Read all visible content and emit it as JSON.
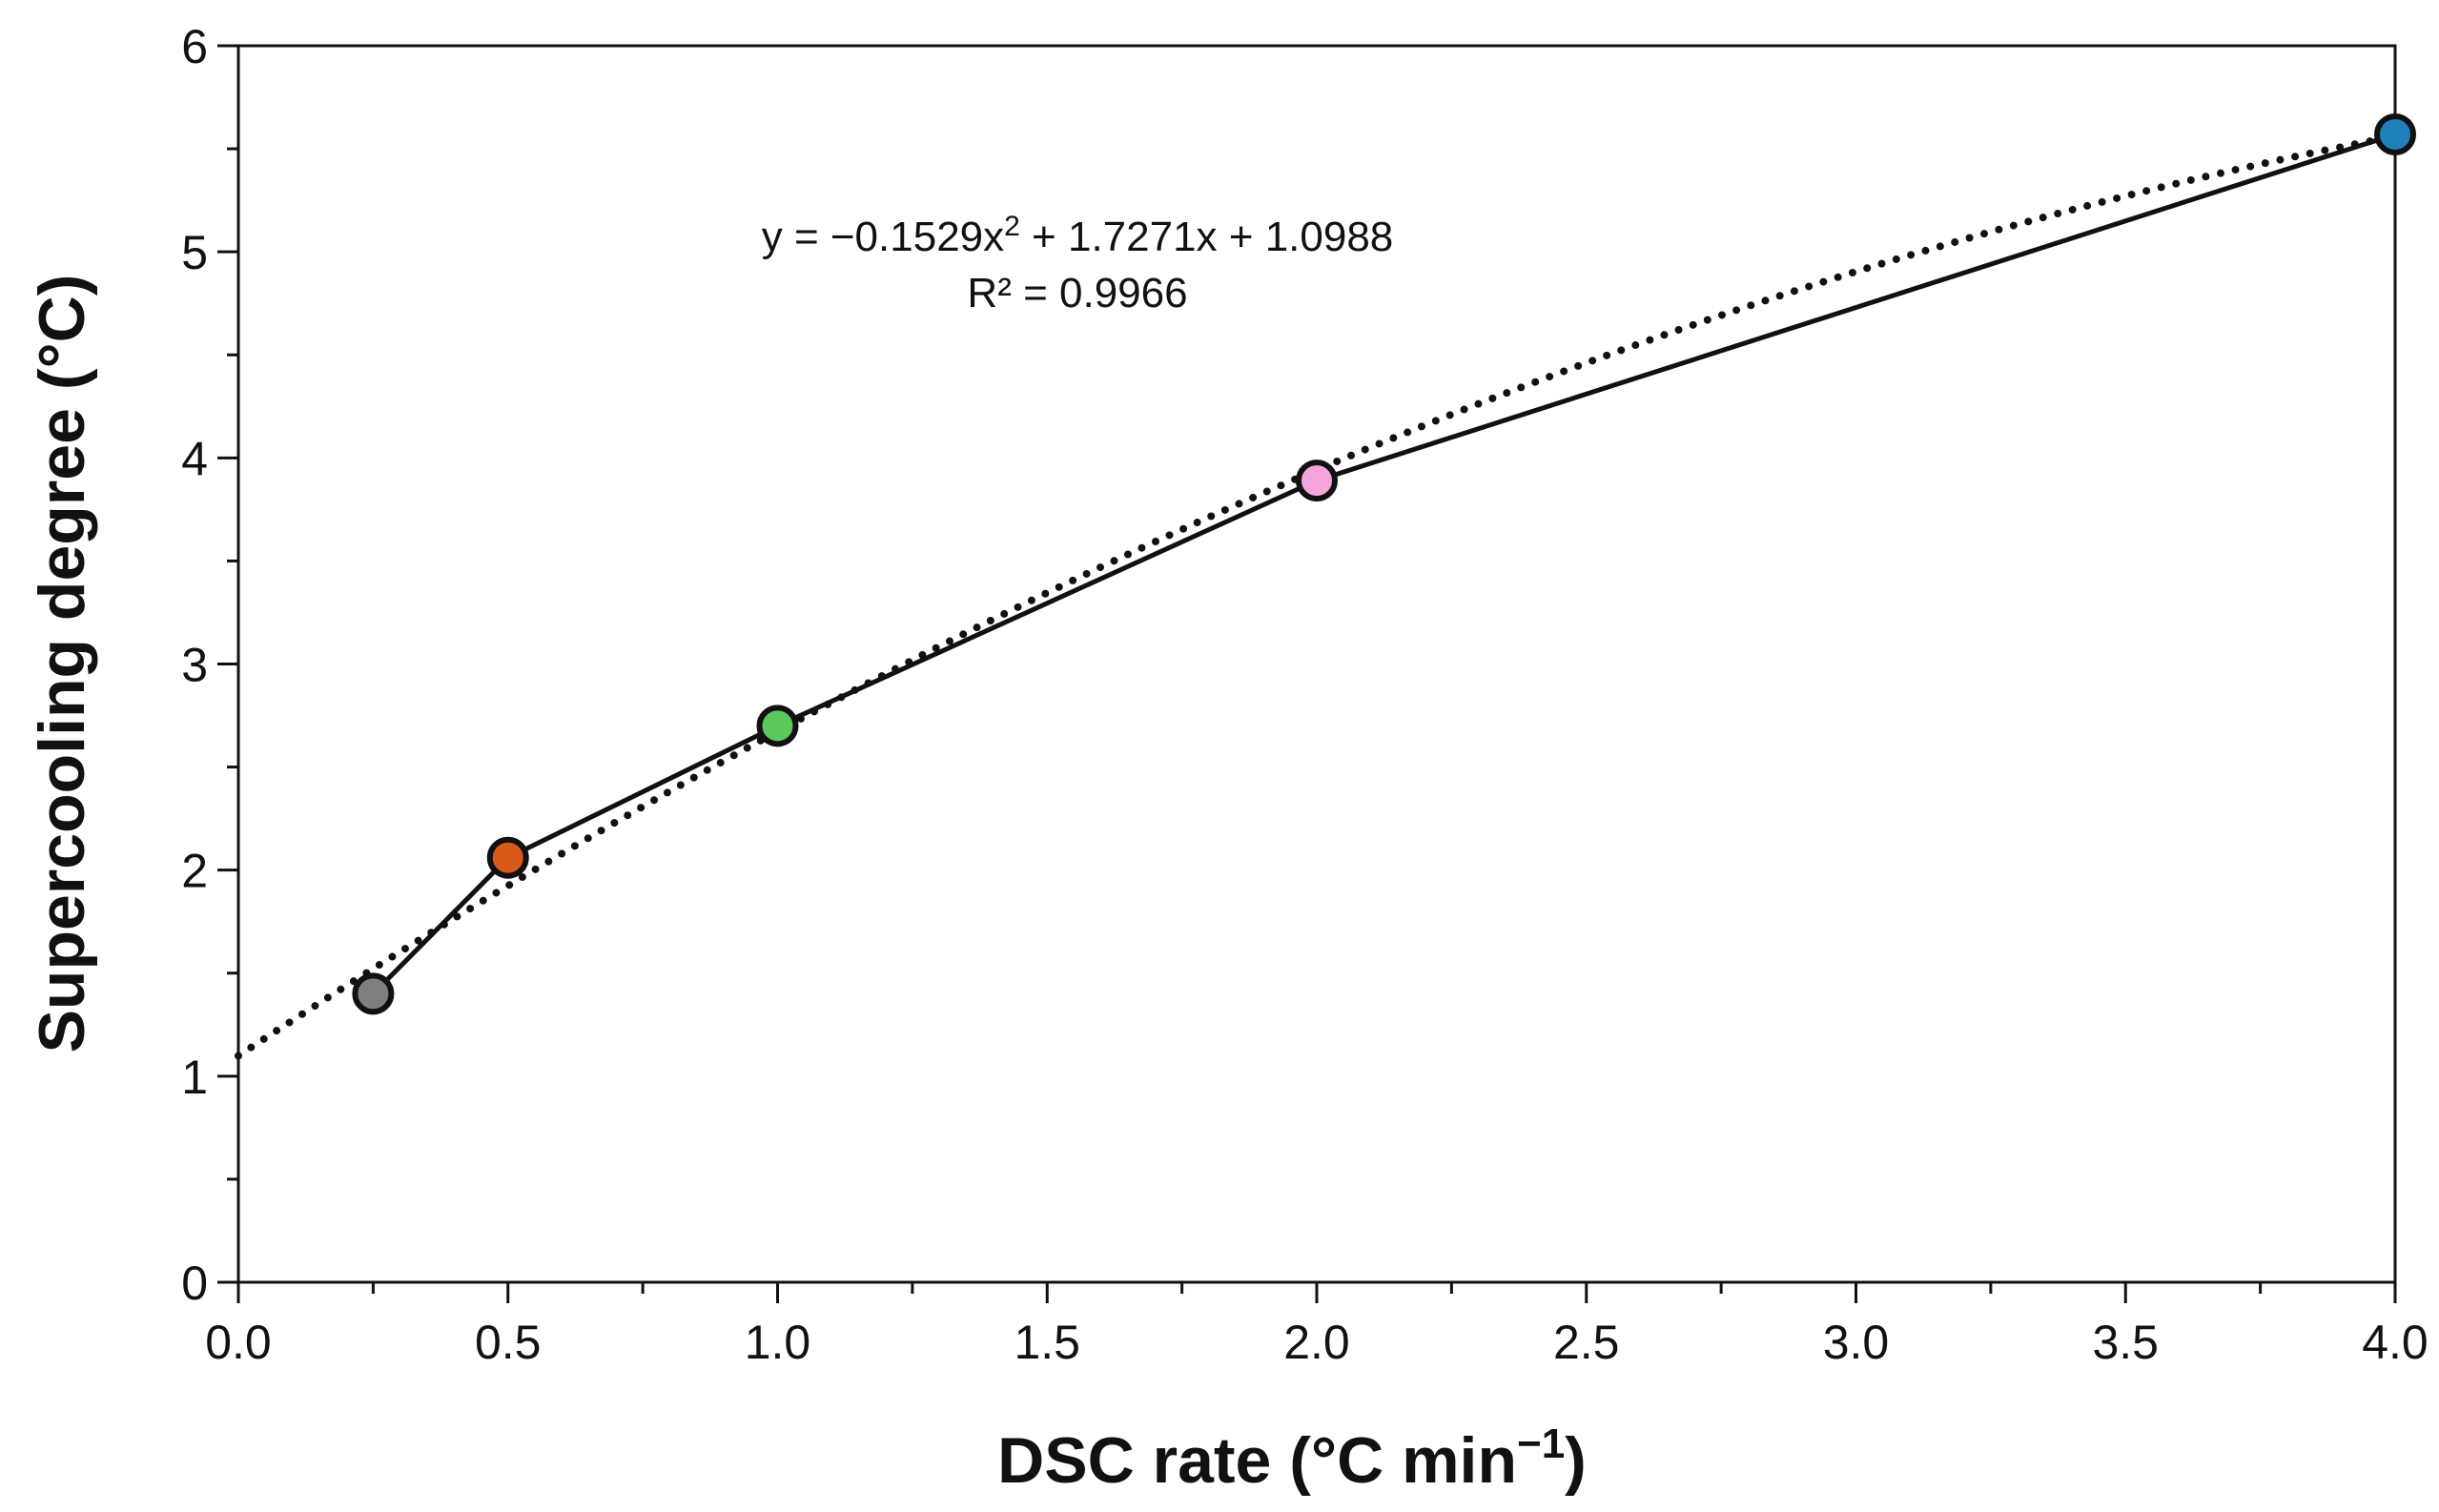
{
  "chart_data": {
    "type": "line",
    "title": "",
    "xlabel": "DSC rate (°C min",
    "xlabel_sup": "−1",
    "xlabel_end": ")",
    "ylabel": "Supercooling degree (°C)",
    "xlim": [
      0.0,
      4.0
    ],
    "ylim": [
      0,
      6
    ],
    "xticks": [
      0.0,
      0.5,
      1.0,
      1.5,
      2.0,
      2.5,
      3.0,
      3.5,
      4.0
    ],
    "xtick_labels": [
      "0.0",
      "0.5",
      "1.0",
      "1.5",
      "2.0",
      "2.5",
      "3.0",
      "3.5",
      "4.0"
    ],
    "yticks": [
      0,
      1,
      2,
      3,
      4,
      5,
      6
    ],
    "ytick_labels": [
      "0",
      "1",
      "2",
      "3",
      "4",
      "5",
      "6"
    ],
    "grid": false,
    "series": [
      {
        "name": "Supercooling degree",
        "x": [
          0.25,
          0.5,
          1.0,
          2.0,
          4.0
        ],
        "y": [
          1.4,
          2.06,
          2.7,
          3.89,
          5.57
        ],
        "marker_colors": [
          "#7f7f7f",
          "#d9591b",
          "#5cc95c",
          "#f4a6dc",
          "#1f7fb8"
        ]
      }
    ],
    "trendline": {
      "type": "polynomial",
      "order": 2,
      "coefficients": {
        "a": -0.1529,
        "b": 1.7271,
        "c": 1.0988
      },
      "style": "dotted",
      "x_range": [
        0.0,
        4.0
      ]
    },
    "annotations": {
      "equation_part1": "y = −0.1529x",
      "equation_sup": "2",
      "equation_part2": " + 1.7271x + 1.0988",
      "r_squared": "R² = 0.9966"
    }
  }
}
